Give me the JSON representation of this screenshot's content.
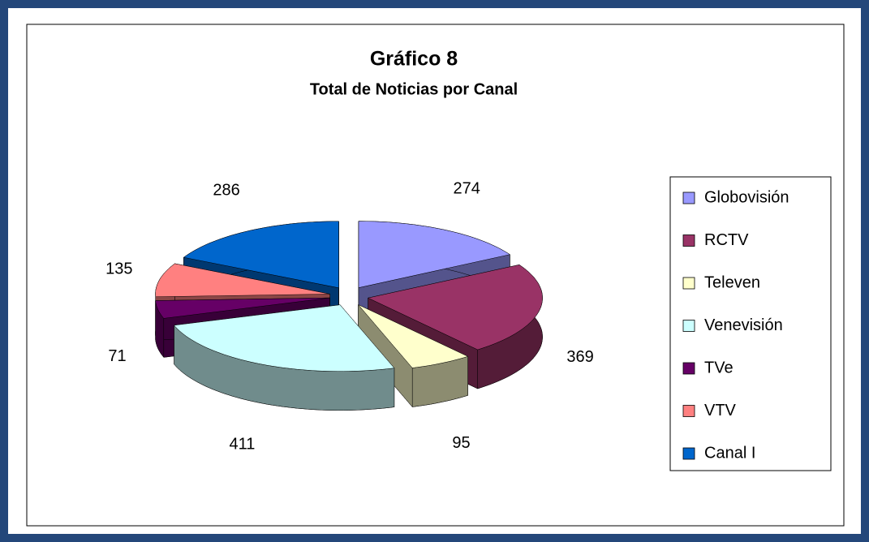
{
  "chart_data": {
    "type": "pie3d",
    "title": "Gráfico 8",
    "subtitle": "Total de Noticias por Canal",
    "categories": [
      "Globovisión",
      "RCTV",
      "Televen",
      "Venevisión",
      "TVe",
      "VTV",
      "Canal I"
    ],
    "values": [
      274,
      369,
      95,
      411,
      71,
      135,
      286
    ],
    "colors": [
      "#9999ff",
      "#993366",
      "#ffffcc",
      "#ccffff",
      "#660066",
      "#ff8080",
      "#0066cc"
    ],
    "legend": "right"
  }
}
